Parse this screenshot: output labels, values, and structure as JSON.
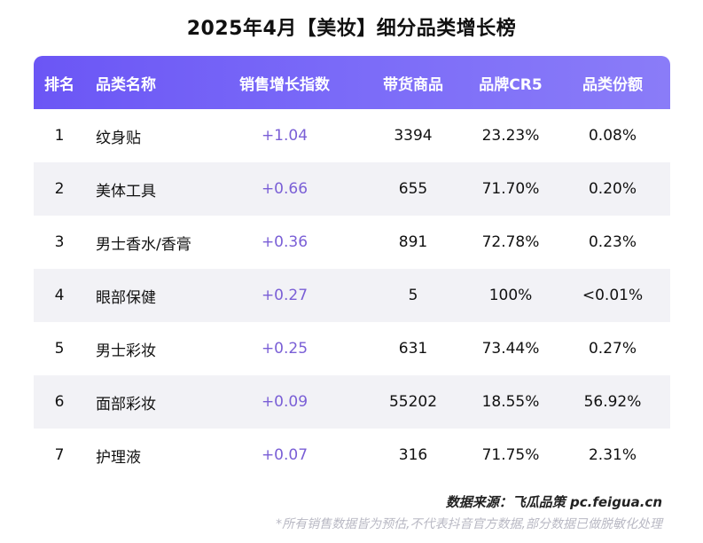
{
  "title": "2025年4月【美妆】细分品类增长榜",
  "colors": {
    "header_bg": "#6b56f5",
    "index_text": "#7a5fd6",
    "alt_row_bg": "#f2f2f6"
  },
  "table": {
    "headers": {
      "rank": "排名",
      "name": "品类名称",
      "index": "销售增长指数",
      "goods": "带货商品",
      "cr5": "品牌CR5",
      "share": "品类份额"
    },
    "rows": [
      {
        "rank": "1",
        "name": "纹身贴",
        "index": "+1.04",
        "goods": "3394",
        "cr5": "23.23%",
        "share": "0.08%"
      },
      {
        "rank": "2",
        "name": "美体工具",
        "index": "+0.66",
        "goods": "655",
        "cr5": "71.70%",
        "share": "0.20%"
      },
      {
        "rank": "3",
        "name": "男士香水/香膏",
        "index": "+0.36",
        "goods": "891",
        "cr5": "72.78%",
        "share": "0.23%"
      },
      {
        "rank": "4",
        "name": "眼部保健",
        "index": "+0.27",
        "goods": "5",
        "cr5": "100%",
        "share": "<0.01%"
      },
      {
        "rank": "5",
        "name": "男士彩妆",
        "index": "+0.25",
        "goods": "631",
        "cr5": "73.44%",
        "share": "0.27%"
      },
      {
        "rank": "6",
        "name": "面部彩妆",
        "index": "+0.09",
        "goods": "55202",
        "cr5": "18.55%",
        "share": "56.92%"
      },
      {
        "rank": "7",
        "name": "护理液",
        "index": "+0.07",
        "goods": "316",
        "cr5": "71.75%",
        "share": "2.31%"
      }
    ]
  },
  "footer": {
    "source": "数据来源：飞瓜品策 pc.feigua.cn",
    "disclaimer": "*所有销售数据皆为预估,不代表抖音官方数据,部分数据已做脱敏化处理"
  }
}
